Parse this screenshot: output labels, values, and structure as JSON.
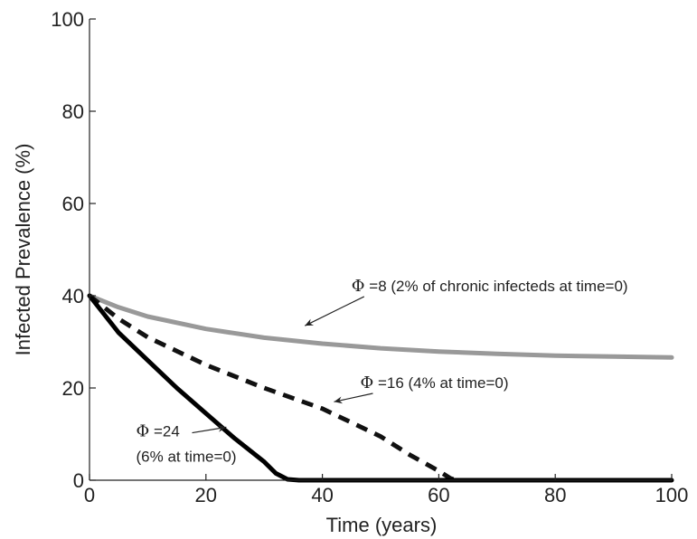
{
  "chart_data": {
    "type": "line",
    "xlabel": "Time (years)",
    "ylabel": "Infected Prevalence (%)",
    "xlim": [
      0,
      100
    ],
    "ylim": [
      0,
      100
    ],
    "xticks": [
      0,
      20,
      40,
      60,
      80,
      100
    ],
    "yticks": [
      0,
      20,
      40,
      60,
      80,
      100
    ],
    "grid": false,
    "legend": "none",
    "series": [
      {
        "color": "#999999",
        "line_style": "solid",
        "x": [
          0,
          5,
          10,
          20,
          30,
          40,
          50,
          60,
          70,
          80,
          90,
          100
        ],
        "y": [
          40,
          37.5,
          35.5,
          32.8,
          30.9,
          29.6,
          28.6,
          27.9,
          27.4,
          27.0,
          26.8,
          26.6
        ]
      },
      {
        "color": "#111111",
        "line_style": "dashed",
        "x": [
          0,
          5,
          10,
          20,
          30,
          40,
          50,
          55,
          60,
          62,
          63,
          65,
          80,
          100
        ],
        "y": [
          40,
          35,
          31,
          25,
          20,
          15.5,
          9.5,
          5.5,
          2,
          0.4,
          0,
          0,
          0,
          0
        ]
      },
      {
        "color": "#000000",
        "line_style": "solid",
        "x": [
          0,
          5,
          10,
          15,
          20,
          25,
          30,
          32,
          34,
          36,
          40,
          60,
          80,
          100
        ],
        "y": [
          40,
          32,
          26,
          20,
          14.5,
          9,
          4,
          1.5,
          0.2,
          0,
          0,
          0,
          0,
          0
        ]
      }
    ],
    "annotations": [
      {
        "symbol": "Φ",
        "text": "=8 (2% of chronic infecteds at time=0)",
        "at": [
          45,
          41
        ],
        "arrow_to": [
          37,
          33.5
        ]
      },
      {
        "symbol": "Φ",
        "text": "=16 (4% at time=0)",
        "at": [
          46.5,
          20
        ],
        "arrow_to": [
          42,
          17
        ]
      },
      {
        "symbol": "Φ",
        "text": "=24",
        "at": [
          8,
          9.5
        ],
        "arrow_to": [
          23.5,
          11.5
        ]
      },
      {
        "symbol": "",
        "text": "(6% at time=0)",
        "at": [
          8,
          4
        ]
      }
    ]
  }
}
